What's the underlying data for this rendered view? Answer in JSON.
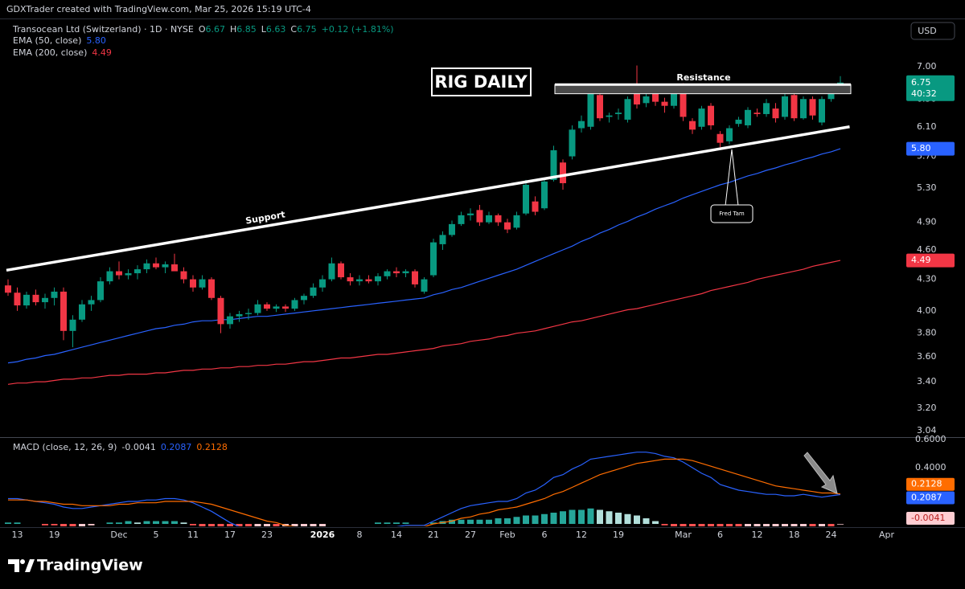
{
  "chart_data": {
    "type": "candlestick",
    "attribution": "GDXTrader created with TradingView.com, Mar 25, 2026 15:19 UTC-4",
    "symbol": "Transocean Ltd (Switzerland) · 1D · NYSE",
    "ohlc_letters": [
      "O",
      "H",
      "L",
      "C"
    ],
    "change_label": "+0.12 (+1.81%)",
    "currency": "USD",
    "countdown": "40:32",
    "brand": "TradingView",
    "up_color": "#089981",
    "down_color": "#f23645",
    "log_scale": true,
    "ylim": [
      3.0,
      7.79
    ],
    "yticks": [
      {
        "value": 7,
        "label": "7.00"
      },
      {
        "value": 6.5,
        "label": "6.50"
      },
      {
        "value": 6.1,
        "label": "6.10"
      },
      {
        "value": 5.7,
        "label": "5.70"
      },
      {
        "value": 5.3,
        "label": "5.30"
      },
      {
        "value": 4.9,
        "label": "4.90"
      },
      {
        "value": 4.6,
        "label": "4.60"
      },
      {
        "value": 4.3,
        "label": "4.30"
      },
      {
        "value": 4,
        "label": "4.00"
      },
      {
        "value": 3.8,
        "label": "3.80"
      },
      {
        "value": 3.6,
        "label": "3.60"
      },
      {
        "value": 3.4,
        "label": "3.40"
      },
      {
        "value": 3.2,
        "label": "3.20"
      },
      3.04
    ],
    "categories": [
      null,
      "13",
      null,
      null,
      null,
      "19",
      null,
      null,
      null,
      null,
      null,
      null,
      "Dec",
      null,
      null,
      null,
      "5",
      null,
      null,
      null,
      "11",
      null,
      null,
      null,
      "17",
      null,
      null,
      null,
      "23",
      null,
      null,
      null,
      null,
      null,
      "2026",
      null,
      null,
      null,
      "8",
      null,
      null,
      null,
      "14",
      null,
      null,
      null,
      "21",
      null,
      null,
      null,
      "27",
      null,
      null,
      null,
      "Feb",
      null,
      null,
      null,
      "6",
      null,
      null,
      null,
      "12",
      null,
      null,
      null,
      "19",
      null,
      null,
      null,
      null,
      null,
      null,
      "Mar",
      null,
      null,
      null,
      "6",
      null,
      null,
      null,
      "12",
      null,
      null,
      null,
      "18",
      null,
      null,
      null,
      "24",
      null,
      null,
      null,
      null,
      null,
      "Apr"
    ],
    "open": [
      4.24,
      4.17,
      4.05,
      4.15,
      4.08,
      4.12,
      4.18,
      3.82,
      3.92,
      4.06,
      4.1,
      4.28,
      4.38,
      4.34,
      4.36,
      4.4,
      4.46,
      4.42,
      4.45,
      4.38,
      4.3,
      4.22,
      4.3,
      4.12,
      3.88,
      3.95,
      3.97,
      3.98,
      4.06,
      4.02,
      4.04,
      4.02,
      4.1,
      4.14,
      4.22,
      4.3,
      4.46,
      4.32,
      4.28,
      4.3,
      4.28,
      4.33,
      4.38,
      4.36,
      4.38,
      4.18,
      4.34,
      4.66,
      4.76,
      4.88,
      4.98,
      5.04,
      4.9,
      4.98,
      4.9,
      4.84,
      5.0,
      5.14,
      5.06,
      5.4,
      5.62,
      5.7,
      6.08,
      6.1,
      6.56,
      6.24,
      6.28,
      6.2,
      6.62,
      6.44,
      6.6,
      6.46,
      6.4,
      6.7,
      6.18,
      6.1,
      6.4,
      6.0,
      5.9,
      6.14,
      6.12,
      6.3,
      6.28,
      6.36,
      6.24,
      6.56,
      6.22,
      6.5,
      6.16,
      6.5,
      6.67,
      null,
      null,
      null,
      null,
      null
    ],
    "high": [
      4.3,
      4.22,
      4.18,
      4.2,
      4.16,
      4.22,
      4.22,
      3.96,
      4.1,
      4.14,
      4.32,
      4.42,
      4.48,
      4.4,
      4.44,
      4.5,
      4.52,
      4.48,
      4.56,
      4.42,
      4.34,
      4.34,
      4.32,
      4.14,
      3.98,
      4.0,
      4.02,
      4.1,
      4.08,
      4.06,
      4.06,
      4.12,
      4.16,
      4.26,
      4.34,
      4.52,
      4.48,
      4.36,
      4.34,
      4.34,
      4.36,
      4.4,
      4.42,
      4.4,
      4.4,
      4.32,
      4.72,
      4.8,
      4.92,
      5.02,
      5.06,
      5.1,
      5.02,
      5.0,
      4.94,
      5.02,
      5.4,
      5.2,
      5.42,
      5.84,
      5.66,
      6.12,
      6.26,
      6.62,
      6.6,
      6.3,
      6.36,
      6.54,
      7.02,
      6.62,
      6.66,
      6.52,
      6.64,
      6.74,
      6.22,
      6.4,
      6.44,
      6.04,
      6.12,
      6.24,
      6.38,
      6.36,
      6.5,
      6.44,
      6.58,
      6.6,
      6.54,
      6.54,
      6.54,
      6.66,
      6.85,
      null,
      null,
      null,
      null,
      null
    ],
    "low": [
      4.14,
      4.0,
      4.02,
      4.05,
      4.02,
      4.05,
      3.74,
      3.68,
      3.9,
      4.0,
      4.08,
      4.25,
      4.3,
      4.3,
      4.3,
      4.36,
      4.4,
      4.36,
      4.4,
      4.26,
      4.18,
      4.2,
      4.1,
      3.8,
      3.84,
      3.9,
      3.92,
      3.96,
      4.0,
      3.99,
      3.99,
      4.0,
      4.06,
      4.12,
      4.18,
      4.28,
      4.3,
      4.24,
      4.24,
      4.26,
      4.24,
      4.3,
      4.32,
      4.32,
      4.22,
      4.16,
      4.32,
      4.6,
      4.74,
      4.86,
      4.92,
      4.86,
      4.88,
      4.86,
      4.78,
      4.82,
      4.98,
      4.98,
      5.04,
      5.38,
      5.28,
      5.66,
      6.02,
      6.06,
      6.18,
      6.16,
      6.2,
      6.16,
      6.36,
      6.38,
      6.4,
      6.3,
      6.36,
      6.18,
      6.0,
      6.06,
      6.06,
      5.82,
      5.86,
      6.1,
      6.08,
      6.24,
      6.24,
      6.16,
      6.2,
      6.18,
      6.2,
      6.2,
      6.12,
      6.46,
      6.63,
      null,
      null,
      null,
      null,
      null
    ],
    "close": [
      4.17,
      4.05,
      4.15,
      4.08,
      4.12,
      4.18,
      3.82,
      3.92,
      4.06,
      4.1,
      4.28,
      4.38,
      4.34,
      4.36,
      4.4,
      4.46,
      4.42,
      4.45,
      4.38,
      4.3,
      4.22,
      4.3,
      4.12,
      3.88,
      3.95,
      3.97,
      3.98,
      4.06,
      4.02,
      4.04,
      4.02,
      4.1,
      4.14,
      4.22,
      4.3,
      4.46,
      4.32,
      4.28,
      4.3,
      4.28,
      4.33,
      4.38,
      4.36,
      4.38,
      4.25,
      4.3,
      4.68,
      4.76,
      4.88,
      4.98,
      5.0,
      4.9,
      4.98,
      4.9,
      4.82,
      4.98,
      5.34,
      5.02,
      5.38,
      5.78,
      5.36,
      6.06,
      6.18,
      6.58,
      6.22,
      6.26,
      6.3,
      6.5,
      6.42,
      6.54,
      6.46,
      6.4,
      6.58,
      6.24,
      6.06,
      6.36,
      6.12,
      5.88,
      6.08,
      6.2,
      6.34,
      6.28,
      6.44,
      6.22,
      6.54,
      6.22,
      6.5,
      6.26,
      6.5,
      6.6,
      6.75,
      null,
      null,
      null,
      null,
      null
    ],
    "series": [
      {
        "name": "EMA (50, close)",
        "color": "#2962ff",
        "last_label": "5.80",
        "values": [
          3.55,
          3.56,
          3.58,
          3.59,
          3.61,
          3.62,
          3.64,
          3.66,
          3.68,
          3.7,
          3.72,
          3.74,
          3.76,
          3.78,
          3.8,
          3.82,
          3.84,
          3.85,
          3.87,
          3.88,
          3.9,
          3.91,
          3.91,
          3.92,
          3.92,
          3.93,
          3.94,
          3.95,
          3.95,
          3.96,
          3.97,
          3.98,
          3.99,
          4.0,
          4.01,
          4.02,
          4.03,
          4.04,
          4.05,
          4.06,
          4.07,
          4.08,
          4.09,
          4.1,
          4.11,
          4.12,
          4.15,
          4.17,
          4.2,
          4.22,
          4.25,
          4.28,
          4.31,
          4.34,
          4.37,
          4.4,
          4.44,
          4.48,
          4.52,
          4.56,
          4.6,
          4.64,
          4.69,
          4.73,
          4.78,
          4.82,
          4.87,
          4.91,
          4.96,
          5.0,
          5.05,
          5.09,
          5.13,
          5.18,
          5.22,
          5.26,
          5.3,
          5.34,
          5.37,
          5.41,
          5.45,
          5.48,
          5.52,
          5.55,
          5.59,
          5.62,
          5.66,
          5.69,
          5.73,
          5.76,
          5.8,
          null,
          null,
          null,
          null,
          null
        ]
      },
      {
        "name": "EMA (200, close)",
        "color": "#f23645",
        "values": [
          3.38,
          3.39,
          3.39,
          3.4,
          3.4,
          3.41,
          3.42,
          3.42,
          3.43,
          3.43,
          3.44,
          3.45,
          3.45,
          3.46,
          3.46,
          3.46,
          3.47,
          3.47,
          3.48,
          3.49,
          3.49,
          3.5,
          3.5,
          3.51,
          3.51,
          3.52,
          3.52,
          3.53,
          3.53,
          3.54,
          3.54,
          3.55,
          3.56,
          3.56,
          3.57,
          3.58,
          3.59,
          3.59,
          3.6,
          3.61,
          3.62,
          3.62,
          3.63,
          3.64,
          3.65,
          3.66,
          3.67,
          3.69,
          3.7,
          3.71,
          3.73,
          3.74,
          3.75,
          3.77,
          3.78,
          3.8,
          3.81,
          3.82,
          3.84,
          3.86,
          3.88,
          3.9,
          3.91,
          3.93,
          3.95,
          3.97,
          3.99,
          4.01,
          4.02,
          4.04,
          4.06,
          4.08,
          4.1,
          4.12,
          4.14,
          4.16,
          4.19,
          4.21,
          4.23,
          4.25,
          4.27,
          4.3,
          4.32,
          4.34,
          4.36,
          4.38,
          4.4,
          4.43,
          4.45,
          4.47,
          4.49,
          null,
          null,
          null,
          null,
          null
        ]
      }
    ],
    "annotations": {
      "title_box": "RIG DAILY",
      "resistance": {
        "label": "Resistance",
        "values": [
          6.58,
          6.72
        ]
      },
      "support": {
        "label": "Support",
        "values": [
          4.39,
          6.1
        ]
      },
      "callout": "Fred Tam"
    },
    "macd": {
      "title": "MACD (close, 12, 26, 9)",
      "ylim": [
        -0.017,
        0.611
      ],
      "yticks": [
        {
          "value": 0.6,
          "label": "0.6000"
        },
        {
          "value": 0.4,
          "label": "0.4000"
        }
      ],
      "histogram": {
        "colors": {
          "rising_positive": "#26a69a",
          "falling_positive": "#b2dfdb",
          "rising_negative": "#ffcdd2",
          "falling_negative": "#ff5252"
        },
        "values": [
          0.01,
          0.01,
          0.0,
          0.0,
          -0.01,
          -0.01,
          -0.02,
          -0.03,
          -0.02,
          -0.01,
          0.0,
          0.01,
          0.01,
          0.02,
          0.01,
          0.02,
          0.02,
          0.02,
          0.02,
          0.01,
          -0.01,
          -0.03,
          -0.05,
          -0.07,
          -0.09,
          -0.1,
          -0.1,
          -0.09,
          -0.08,
          -0.08,
          -0.07,
          -0.06,
          -0.05,
          -0.03,
          -0.02,
          0.0,
          0.0,
          0.0,
          0.0,
          0.0,
          0.01,
          0.01,
          0.01,
          0.01,
          0.0,
          0.0,
          0.01,
          0.02,
          0.03,
          0.03,
          0.03,
          0.03,
          0.03,
          0.04,
          0.04,
          0.05,
          0.06,
          0.06,
          0.07,
          0.08,
          0.09,
          0.1,
          0.1,
          0.11,
          0.1,
          0.09,
          0.08,
          0.07,
          0.06,
          0.04,
          0.02,
          -0.01,
          -0.03,
          -0.05,
          -0.07,
          -0.08,
          -0.09,
          -0.1,
          -0.1,
          -0.1,
          -0.09,
          -0.08,
          -0.07,
          -0.06,
          -0.05,
          -0.04,
          -0.03,
          -0.03,
          -0.02,
          -0.02,
          -0.0041,
          null,
          null,
          null,
          null,
          null
        ]
      },
      "macd_line": {
        "color": "#2962ff",
        "values": [
          0.18,
          0.18,
          0.17,
          0.16,
          0.15,
          0.14,
          0.12,
          0.11,
          0.11,
          0.12,
          0.13,
          0.14,
          0.15,
          0.16,
          0.16,
          0.17,
          0.17,
          0.18,
          0.18,
          0.17,
          0.15,
          0.12,
          0.09,
          0.05,
          0.01,
          -0.02,
          -0.04,
          -0.05,
          -0.06,
          -0.07,
          -0.08,
          -0.08,
          -0.08,
          -0.07,
          -0.06,
          -0.04,
          -0.04,
          -0.04,
          -0.04,
          -0.04,
          -0.03,
          -0.02,
          -0.02,
          -0.01,
          -0.01,
          -0.01,
          0.02,
          0.05,
          0.08,
          0.11,
          0.13,
          0.14,
          0.15,
          0.16,
          0.16,
          0.18,
          0.22,
          0.24,
          0.28,
          0.33,
          0.35,
          0.39,
          0.42,
          0.46,
          0.47,
          0.48,
          0.49,
          0.5,
          0.51,
          0.51,
          0.5,
          0.48,
          0.47,
          0.44,
          0.4,
          0.36,
          0.33,
          0.28,
          0.26,
          0.24,
          0.23,
          0.22,
          0.21,
          0.21,
          0.2,
          0.2,
          0.21,
          0.2,
          0.19,
          0.2,
          0.2087,
          null,
          null,
          null,
          null,
          null
        ]
      },
      "signal_line": {
        "color": "#ff6d00",
        "values": [
          0.17,
          0.17,
          0.17,
          0.16,
          0.16,
          0.15,
          0.14,
          0.14,
          0.13,
          0.13,
          0.13,
          0.13,
          0.14,
          0.14,
          0.15,
          0.15,
          0.15,
          0.16,
          0.16,
          0.16,
          0.16,
          0.15,
          0.14,
          0.12,
          0.1,
          0.08,
          0.06,
          0.04,
          0.02,
          0.01,
          -0.01,
          -0.02,
          -0.03,
          -0.04,
          -0.04,
          -0.04,
          -0.04,
          -0.04,
          -0.04,
          -0.04,
          -0.04,
          -0.03,
          -0.03,
          -0.02,
          -0.02,
          -0.02,
          0.0,
          0.01,
          0.02,
          0.04,
          0.05,
          0.07,
          0.08,
          0.1,
          0.11,
          0.12,
          0.14,
          0.16,
          0.18,
          0.21,
          0.23,
          0.26,
          0.29,
          0.32,
          0.35,
          0.37,
          0.39,
          0.41,
          0.43,
          0.44,
          0.45,
          0.46,
          0.46,
          0.46,
          0.45,
          0.43,
          0.41,
          0.39,
          0.37,
          0.35,
          0.33,
          0.31,
          0.29,
          0.27,
          0.26,
          0.25,
          0.24,
          0.23,
          0.22,
          0.22,
          0.2128,
          null,
          null,
          null,
          null,
          null
        ]
      }
    }
  }
}
